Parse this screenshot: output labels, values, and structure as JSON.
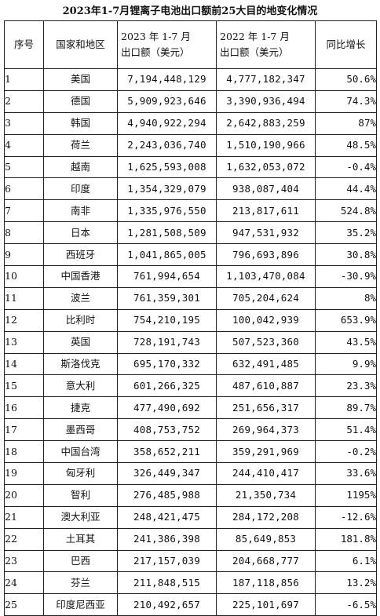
{
  "title": "2023年1-7月锂离子电池出口额前25大目的地变化情况",
  "table": {
    "headers": {
      "index": "序号",
      "region": "国家和地区",
      "y2023_line1": "2023 年 1-7 月",
      "y2023_line2": "出口额（美元）",
      "y2022_line1": "2022 年 1-7 月",
      "y2022_line2": "出口额（美元）",
      "yoy": "同比增长"
    },
    "rows": [
      {
        "index": "1",
        "region": "美国",
        "y2023": "7,194,448,129",
        "y2022": "4,777,182,347",
        "yoy": "50.6%"
      },
      {
        "index": "2",
        "region": "德国",
        "y2023": "5,909,923,646",
        "y2022": "3,390,936,494",
        "yoy": "74.3%"
      },
      {
        "index": "3",
        "region": "韩国",
        "y2023": "4,940,922,294",
        "y2022": "2,642,883,259",
        "yoy": "87%"
      },
      {
        "index": "4",
        "region": "荷兰",
        "y2023": "2,243,036,740",
        "y2022": "1,510,190,966",
        "yoy": "48.5%"
      },
      {
        "index": "5",
        "region": "越南",
        "y2023": "1,625,593,008",
        "y2022": "1,632,053,072",
        "yoy": "-0.4%"
      },
      {
        "index": "6",
        "region": "印度",
        "y2023": "1,354,329,079",
        "y2022": "938,087,404",
        "yoy": "44.4%"
      },
      {
        "index": "7",
        "region": "南非",
        "y2023": "1,335,976,550",
        "y2022": "213,817,611",
        "yoy": "524.8%"
      },
      {
        "index": "8",
        "region": "日本",
        "y2023": "1,281,508,509",
        "y2022": "947,531,932",
        "yoy": "35.2%"
      },
      {
        "index": "9",
        "region": "西班牙",
        "y2023": "1,041,865,005",
        "y2022": "796,693,896",
        "yoy": "30.8%"
      },
      {
        "index": "10",
        "region": "中国香港",
        "y2023": "761,994,654",
        "y2022": "1,103,470,084",
        "yoy": "-30.9%"
      },
      {
        "index": "11",
        "region": "波兰",
        "y2023": "761,359,301",
        "y2022": "705,204,624",
        "yoy": "8%"
      },
      {
        "index": "12",
        "region": "比利时",
        "y2023": "754,210,195",
        "y2022": "100,042,939",
        "yoy": "653.9%"
      },
      {
        "index": "13",
        "region": "英国",
        "y2023": "728,191,743",
        "y2022": "507,523,360",
        "yoy": "43.5%"
      },
      {
        "index": "14",
        "region": "斯洛伐克",
        "y2023": "695,170,332",
        "y2022": "632,491,485",
        "yoy": "9.9%"
      },
      {
        "index": "15",
        "region": "意大利",
        "y2023": "601,266,325",
        "y2022": "487,610,887",
        "yoy": "23.3%"
      },
      {
        "index": "16",
        "region": "捷克",
        "y2023": "477,490,692",
        "y2022": "251,656,317",
        "yoy": "89.7%"
      },
      {
        "index": "17",
        "region": "墨西哥",
        "y2023": "408,753,752",
        "y2022": "269,964,373",
        "yoy": "51.4%"
      },
      {
        "index": "18",
        "region": "中国台湾",
        "y2023": "358,652,211",
        "y2022": "359,291,969",
        "yoy": "-0.2%"
      },
      {
        "index": "19",
        "region": "匈牙利",
        "y2023": "326,449,347",
        "y2022": "244,410,417",
        "yoy": "33.6%"
      },
      {
        "index": "20",
        "region": "智利",
        "y2023": "276,485,988",
        "y2022": "21,350,734",
        "yoy": "1195%"
      },
      {
        "index": "21",
        "region": "澳大利亚",
        "y2023": "248,421,475",
        "y2022": "284,172,208",
        "yoy": "-12.6%"
      },
      {
        "index": "22",
        "region": "土耳其",
        "y2023": "241,386,398",
        "y2022": "85,649,853",
        "yoy": "181.8%"
      },
      {
        "index": "23",
        "region": "巴西",
        "y2023": "217,157,039",
        "y2022": "204,668,777",
        "yoy": "6.1%"
      },
      {
        "index": "24",
        "region": "芬兰",
        "y2023": "211,848,515",
        "y2022": "187,118,856",
        "yoy": "13.2%"
      },
      {
        "index": "25",
        "region": "印度尼西亚",
        "y2023": "210,492,657",
        "y2022": "225,101,697",
        "yoy": "-6.5%"
      }
    ]
  }
}
